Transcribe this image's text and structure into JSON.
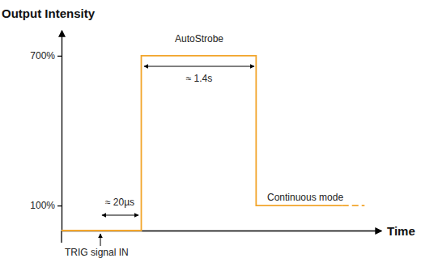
{
  "chart_data": {
    "type": "line",
    "y_label": "Output Intensity",
    "x_label": "Time",
    "xlim": [
      0,
      100
    ],
    "ylim": [
      0,
      800
    ],
    "yticks": [
      {
        "value": 100,
        "label": "100%"
      },
      {
        "value": 700,
        "label": "700%"
      }
    ],
    "tick_labels": "y",
    "grid": false,
    "series": [
      {
        "color": "#f2a52b",
        "line_style": "solid",
        "x": [
          0,
          25,
          25,
          61,
          61,
          88
        ],
        "values": [
          0,
          0,
          700,
          700,
          100,
          100
        ]
      },
      {
        "color": "#f2a52b",
        "line_style": "dashed",
        "x": [
          88,
          95
        ],
        "values": [
          100,
          100
        ]
      }
    ],
    "annotations": [
      "AutoStrobe",
      "≈ 1.4s",
      "≈ 20µs",
      "TRIG signal IN",
      "Continuous mode"
    ]
  }
}
